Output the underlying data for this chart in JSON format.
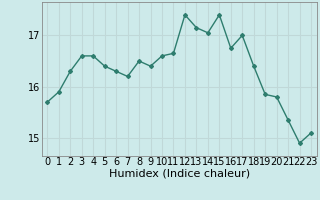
{
  "x": [
    0,
    1,
    2,
    3,
    4,
    5,
    6,
    7,
    8,
    9,
    10,
    11,
    12,
    13,
    14,
    15,
    16,
    17,
    18,
    19,
    20,
    21,
    22,
    23
  ],
  "y": [
    15.7,
    15.9,
    16.3,
    16.6,
    16.6,
    16.4,
    16.3,
    16.2,
    16.5,
    16.4,
    16.6,
    16.65,
    17.4,
    17.15,
    17.05,
    17.4,
    16.75,
    17.0,
    16.4,
    15.85,
    15.8,
    15.35,
    14.9,
    15.1
  ],
  "line_color": "#2e7d6e",
  "marker": "D",
  "marker_size": 2.0,
  "linewidth": 1.0,
  "xlabel": "Humidex (Indice chaleur)",
  "ylim": [
    14.65,
    17.65
  ],
  "xlim": [
    -0.5,
    23.5
  ],
  "yticks": [
    15,
    16,
    17
  ],
  "xtick_labels": [
    "0",
    "1",
    "2",
    "3",
    "4",
    "5",
    "6",
    "7",
    "8",
    "9",
    "10",
    "11",
    "12",
    "13",
    "14",
    "15",
    "16",
    "17",
    "18",
    "19",
    "20",
    "21",
    "22",
    "23"
  ],
  "bg_color": "#cdeaea",
  "grid_color": "#c0d8d8",
  "xlabel_fontsize": 8,
  "tick_fontsize": 7,
  "ylabel_fontsize": 7
}
